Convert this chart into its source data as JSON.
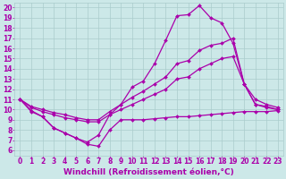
{
  "background_color": "#cce8e8",
  "grid_color": "#aacccc",
  "line_color": "#aa00aa",
  "marker": "D",
  "markersize": 2,
  "linewidth": 0.9,
  "xlabel": "Windchill (Refroidissement éolien,°C)",
  "xlabel_fontsize": 6.5,
  "xlim": [
    -0.5,
    23.5
  ],
  "ylim": [
    5.5,
    20.5
  ],
  "xticks": [
    0,
    1,
    2,
    3,
    4,
    5,
    6,
    7,
    8,
    9,
    10,
    11,
    12,
    13,
    14,
    15,
    16,
    17,
    18,
    19,
    20,
    21,
    22,
    23
  ],
  "yticks": [
    6,
    7,
    8,
    9,
    10,
    11,
    12,
    13,
    14,
    15,
    16,
    17,
    18,
    19,
    20
  ],
  "tick_fontsize": 5.5,
  "series": [
    {
      "x": [
        0,
        1,
        2,
        3,
        4,
        5,
        6,
        7,
        8,
        9,
        10,
        11,
        12,
        13,
        14,
        15,
        16,
        17,
        18,
        19,
        20,
        21,
        22,
        23
      ],
      "y": [
        11.0,
        9.8,
        9.3,
        8.2,
        7.7,
        7.2,
        6.6,
        6.4,
        8.0,
        9.0,
        9.0,
        9.0,
        9.1,
        9.2,
        9.3,
        9.3,
        9.4,
        9.5,
        9.6,
        9.7,
        9.8,
        9.8,
        9.8,
        9.9
      ]
    },
    {
      "x": [
        0,
        1,
        2,
        3,
        4,
        5,
        6,
        7,
        8,
        9,
        10,
        11,
        12,
        13,
        14,
        15,
        16,
        17,
        18,
        19,
        20,
        21,
        22,
        23
      ],
      "y": [
        11.0,
        10.2,
        9.8,
        9.5,
        9.2,
        9.0,
        8.8,
        8.8,
        9.5,
        10.0,
        10.5,
        11.0,
        11.5,
        12.0,
        13.0,
        13.2,
        14.0,
        14.5,
        15.0,
        15.2,
        12.5,
        10.5,
        10.3,
        10.0
      ]
    },
    {
      "x": [
        0,
        1,
        2,
        3,
        4,
        5,
        6,
        7,
        8,
        9,
        10,
        11,
        12,
        13,
        14,
        15,
        16,
        17,
        18,
        19,
        20,
        21,
        22,
        23
      ],
      "y": [
        11.0,
        10.3,
        10.0,
        9.7,
        9.5,
        9.2,
        9.0,
        9.0,
        9.8,
        10.5,
        11.2,
        11.8,
        12.5,
        13.2,
        14.5,
        14.8,
        15.8,
        16.3,
        16.5,
        17.0,
        12.5,
        11.0,
        10.5,
        10.2
      ]
    },
    {
      "x": [
        0,
        1,
        2,
        3,
        4,
        5,
        6,
        7,
        8,
        9,
        10,
        11,
        12,
        13,
        14,
        15,
        16,
        17,
        18,
        19,
        20,
        21,
        22,
        23
      ],
      "y": [
        11.0,
        9.9,
        9.3,
        8.2,
        7.7,
        7.2,
        6.8,
        7.5,
        9.5,
        10.5,
        12.2,
        12.8,
        14.5,
        16.8,
        19.2,
        19.3,
        20.2,
        19.0,
        18.5,
        16.5,
        12.5,
        10.5,
        10.2,
        10.0
      ]
    }
  ]
}
